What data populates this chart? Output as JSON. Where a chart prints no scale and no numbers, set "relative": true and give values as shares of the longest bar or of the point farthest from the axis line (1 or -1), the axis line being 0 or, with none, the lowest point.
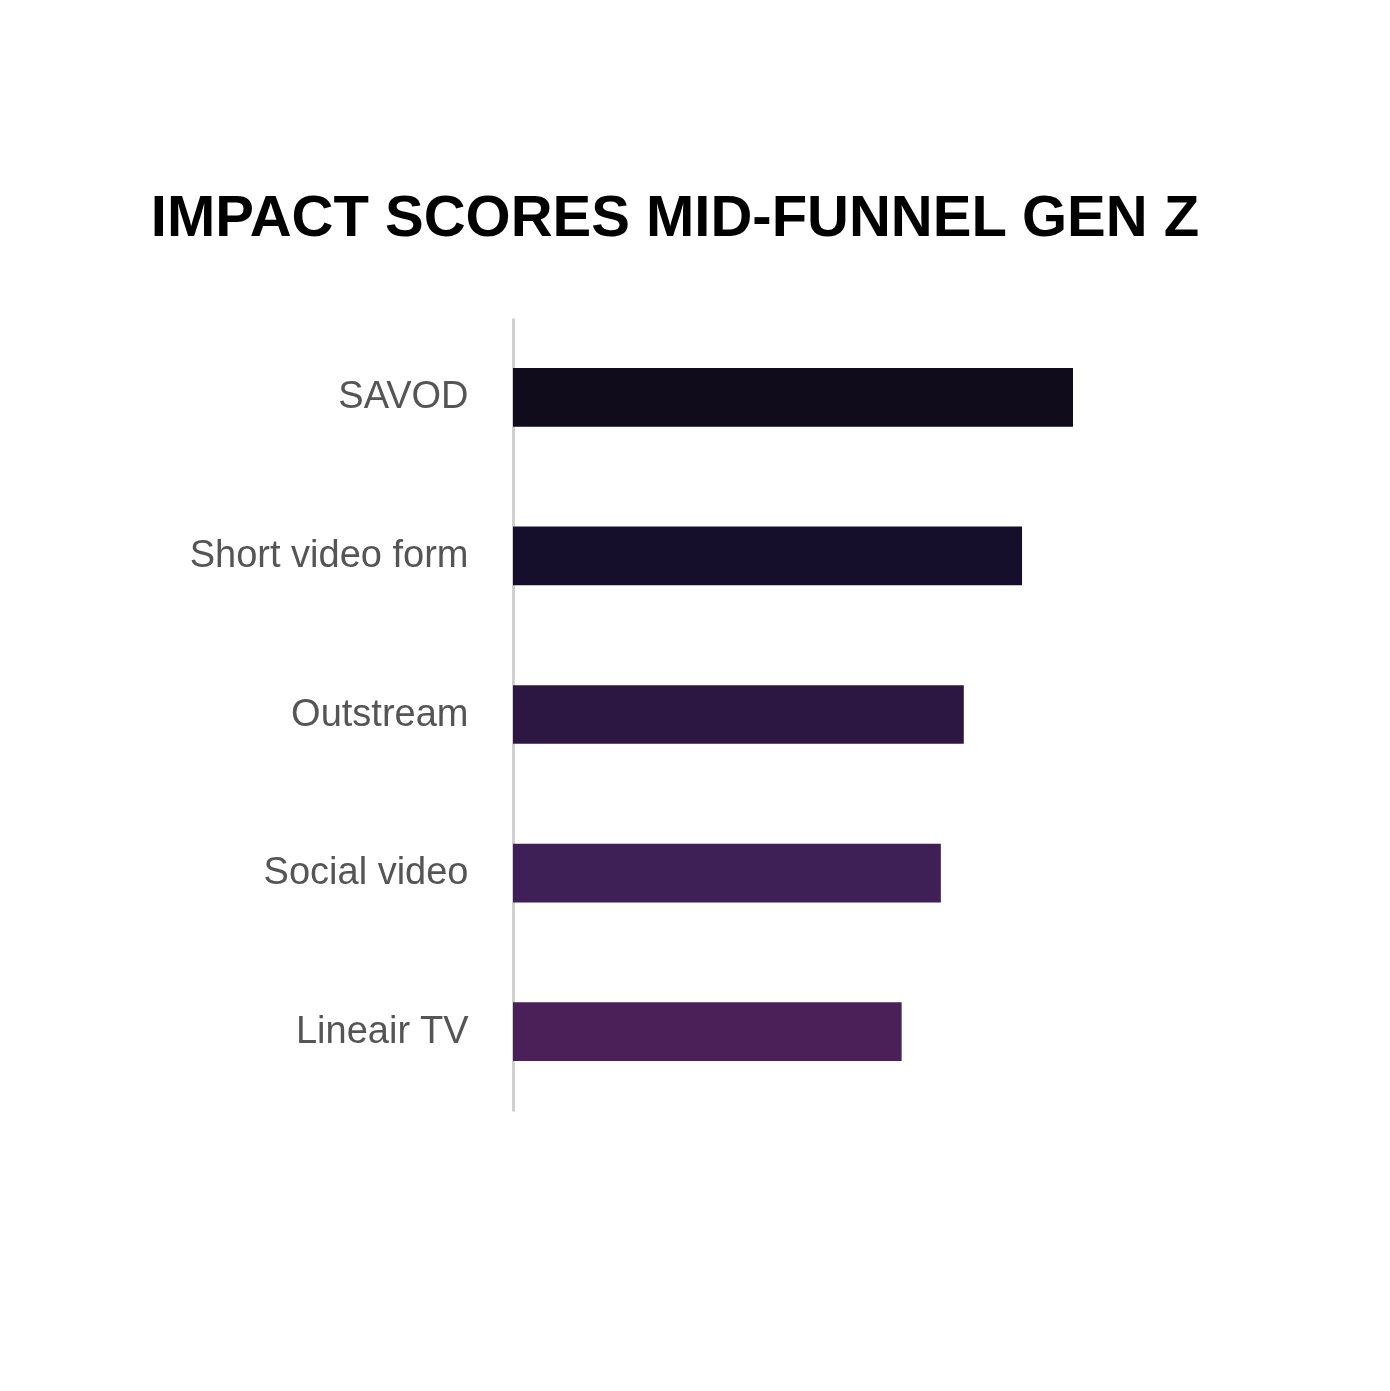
{
  "chart_data": {
    "type": "bar",
    "title": "IMPACT SCORES MID-FUNNEL\nGEN Z",
    "orientation": "horizontal",
    "relative": true,
    "categories": [
      "SAVOD",
      "Short video form",
      "Outstream",
      "Social video",
      "Lineair TV"
    ],
    "values": [
      1,
      0.909,
      0.805,
      0.764,
      0.694
    ],
    "colors": [
      "#100c1c",
      "#160f2c",
      "#2c1742",
      "#3e1f56",
      "#4b2059"
    ]
  }
}
